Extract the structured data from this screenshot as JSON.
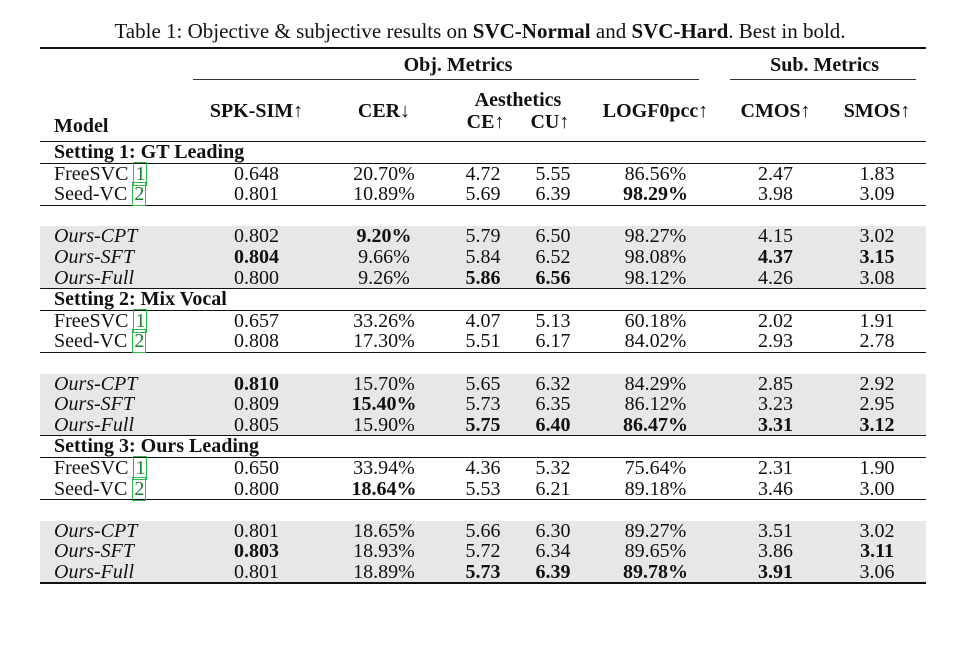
{
  "caption": {
    "prefix": "Table 1: Objective & subjective results on ",
    "bold1": "SVC-Normal",
    "mid": " and ",
    "bold2": "SVC-Hard",
    "suffix": ". Best in bold."
  },
  "header": {
    "model": "Model",
    "obj_group": "Obj. Metrics",
    "sub_group": "Sub. Metrics",
    "spk_sim": "SPK-SIM↑",
    "cer": "CER↓",
    "aesthetics": "Aesthetics",
    "ce": "CE↑",
    "cu": "CU↑",
    "logf0": "LOGF0pcc↑",
    "cmos": "CMOS↑",
    "smos": "SMOS↑"
  },
  "settings": [
    {
      "title": "Setting 1: GT Leading",
      "baselines": [
        {
          "name": "FreeSVC",
          "cite": "1",
          "spk": "0.648",
          "cer": "20.70%",
          "ce": "4.72",
          "cu": "5.55",
          "logf0": "86.56%",
          "cmos": "2.47",
          "smos": "1.83"
        },
        {
          "name": "Seed-VC",
          "cite": "2",
          "spk": "0.801",
          "cer": "10.89%",
          "ce": "5.69",
          "cu": "6.39",
          "logf0": "98.29%",
          "cmos": "3.98",
          "smos": "3.09"
        }
      ],
      "ours": [
        {
          "name": "Ours-CPT",
          "spk": "0.802",
          "cer": "9.20%",
          "ce": "5.79",
          "cu": "6.50",
          "logf0": "98.27%",
          "cmos": "4.15",
          "smos": "3.02"
        },
        {
          "name": "Ours-SFT",
          "spk": "0.804",
          "cer": "9.66%",
          "ce": "5.84",
          "cu": "6.52",
          "logf0": "98.08%",
          "cmos": "4.37",
          "smos": "3.15"
        },
        {
          "name": "Ours-Full",
          "spk": "0.800",
          "cer": "9.26%",
          "ce": "5.86",
          "cu": "6.56",
          "logf0": "98.12%",
          "cmos": "4.26",
          "smos": "3.08"
        }
      ]
    },
    {
      "title": "Setting 2: Mix Vocal",
      "baselines": [
        {
          "name": "FreeSVC",
          "cite": "1",
          "spk": "0.657",
          "cer": "33.26%",
          "ce": "4.07",
          "cu": "5.13",
          "logf0": "60.18%",
          "cmos": "2.02",
          "smos": "1.91"
        },
        {
          "name": "Seed-VC",
          "cite": "2",
          "spk": "0.808",
          "cer": "17.30%",
          "ce": "5.51",
          "cu": "6.17",
          "logf0": "84.02%",
          "cmos": "2.93",
          "smos": "2.78"
        }
      ],
      "ours": [
        {
          "name": "Ours-CPT",
          "spk": "0.810",
          "cer": "15.70%",
          "ce": "5.65",
          "cu": "6.32",
          "logf0": "84.29%",
          "cmos": "2.85",
          "smos": "2.92"
        },
        {
          "name": "Ours-SFT",
          "spk": "0.809",
          "cer": "15.40%",
          "ce": "5.73",
          "cu": "6.35",
          "logf0": "86.12%",
          "cmos": "3.23",
          "smos": "2.95"
        },
        {
          "name": "Ours-Full",
          "spk": "0.805",
          "cer": "15.90%",
          "ce": "5.75",
          "cu": "6.40",
          "logf0": "86.47%",
          "cmos": "3.31",
          "smos": "3.12"
        }
      ]
    },
    {
      "title": "Setting 3: Ours Leading",
      "baselines": [
        {
          "name": "FreeSVC",
          "cite": "1",
          "spk": "0.650",
          "cer": "33.94%",
          "ce": "4.36",
          "cu": "5.32",
          "logf0": "75.64%",
          "cmos": "2.31",
          "smos": "1.90"
        },
        {
          "name": "Seed-VC",
          "cite": "2",
          "spk": "0.800",
          "cer": "18.64%",
          "ce": "5.53",
          "cu": "6.21",
          "logf0": "89.18%",
          "cmos": "3.46",
          "smos": "3.00"
        }
      ],
      "ours": [
        {
          "name": "Ours-CPT",
          "spk": "0.801",
          "cer": "18.65%",
          "ce": "5.66",
          "cu": "6.30",
          "logf0": "89.27%",
          "cmos": "3.51",
          "smos": "3.02"
        },
        {
          "name": "Ours-SFT",
          "spk": "0.803",
          "cer": "18.93%",
          "ce": "5.72",
          "cu": "6.34",
          "logf0": "89.65%",
          "cmos": "3.86",
          "smos": "3.11"
        },
        {
          "name": "Ours-Full",
          "spk": "0.801",
          "cer": "18.89%",
          "ce": "5.73",
          "cu": "6.39",
          "logf0": "89.78%",
          "cmos": "3.91",
          "smos": "3.06"
        }
      ]
    }
  ]
}
